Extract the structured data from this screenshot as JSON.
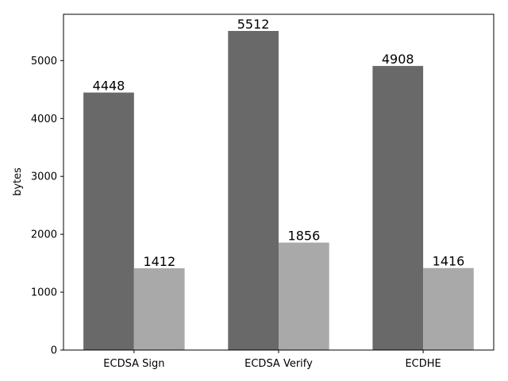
{
  "chart_data": {
    "type": "bar",
    "title": "",
    "xlabel": "",
    "ylabel": "bytes",
    "ylim": [
      0,
      5800
    ],
    "yticks": [
      0,
      1000,
      2000,
      3000,
      4000,
      5000
    ],
    "categories": [
      "ECDSA Sign",
      "ECDSA Verify",
      "ECDHE"
    ],
    "series": [
      {
        "values": [
          4448,
          5512,
          4908
        ],
        "color": "#696969"
      },
      {
        "values": [
          1412,
          1856,
          1416
        ],
        "color": "#a9a9a9"
      }
    ],
    "data_labels": true,
    "grid": false,
    "legend": "none"
  }
}
